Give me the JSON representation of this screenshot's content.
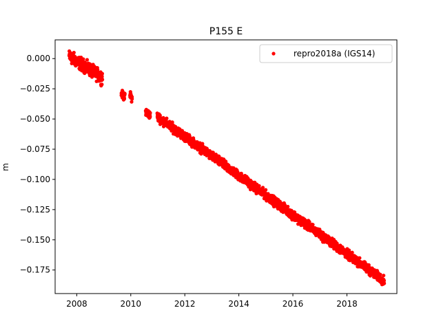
{
  "chart_data": {
    "type": "scatter",
    "title": "P155 E",
    "xlabel": "",
    "ylabel": "m",
    "xlim": [
      2007.2,
      2019.85
    ],
    "ylim": [
      -0.1945,
      0.0155
    ],
    "xticks": [
      2008,
      2010,
      2012,
      2014,
      2016,
      2018
    ],
    "yticks": [
      0.0,
      -0.025,
      -0.05,
      -0.075,
      -0.1,
      -0.125,
      -0.15,
      -0.175
    ],
    "ytick_labels": [
      "0.000",
      "−0.025",
      "−0.050",
      "−0.075",
      "−0.100",
      "−0.125",
      "−0.150",
      "−0.175"
    ],
    "grid": false,
    "legend_position": "top-right",
    "marker_color": "#ff0000",
    "series": [
      {
        "name": "repro2018a (IGS14)",
        "segments": [
          {
            "x_start": 2007.72,
            "x_end": 2008.95,
            "y_start": 0.002,
            "y_end": -0.016,
            "noise": 0.0025
          },
          {
            "x_start": 2009.65,
            "x_end": 2009.78,
            "y_start": -0.029,
            "y_end": -0.032,
            "noise": 0.0015
          },
          {
            "x_start": 2009.97,
            "x_end": 2010.05,
            "y_start": -0.03,
            "y_end": -0.033,
            "noise": 0.0015
          },
          {
            "x_start": 2010.55,
            "x_end": 2010.72,
            "y_start": -0.044,
            "y_end": -0.047,
            "noise": 0.0015
          },
          {
            "x_start": 2010.98,
            "x_end": 2019.38,
            "y_start": -0.048,
            "y_end": -0.184,
            "noise": 0.0018
          }
        ]
      }
    ]
  }
}
